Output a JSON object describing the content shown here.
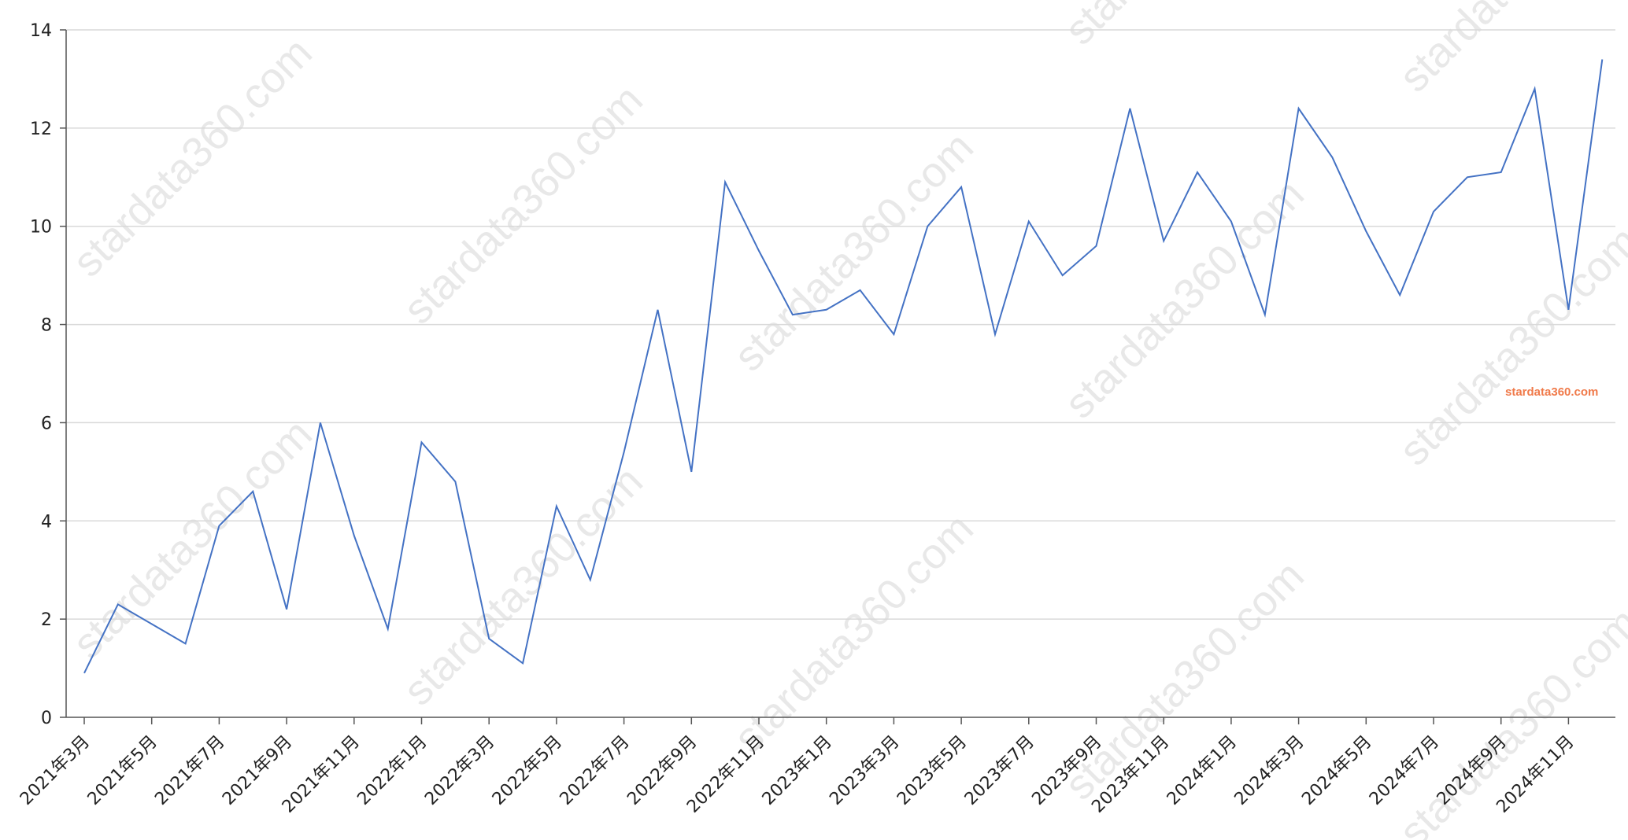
{
  "watermark": {
    "text": "stardata360.com",
    "color": "#e8e8e8"
  },
  "brand": {
    "text": "stardata360.com",
    "color": "#f07a4a"
  },
  "chart_data": {
    "type": "line",
    "title": "",
    "xlabel": "",
    "ylabel": "",
    "ylim": [
      0,
      14
    ],
    "yticks": [
      0,
      2,
      4,
      6,
      8,
      10,
      12,
      14
    ],
    "grid": true,
    "line_color": "#4472c4",
    "x": [
      "2021年3月",
      "2021年4月",
      "2021年5月",
      "2021年6月",
      "2021年7月",
      "2021年8月",
      "2021年9月",
      "2021年10月",
      "2021年11月",
      "2021年12月",
      "2022年1月",
      "2022年2月",
      "2022年3月",
      "2022年4月",
      "2022年5月",
      "2022年6月",
      "2022年7月",
      "2022年8月",
      "2022年9月",
      "2022年10月",
      "2022年11月",
      "2022年12月",
      "2023年1月",
      "2023年2月",
      "2023年3月",
      "2023年4月",
      "2023年5月",
      "2023年6月",
      "2023年7月",
      "2023年8月",
      "2023年9月",
      "2023年10月",
      "2023年11月",
      "2023年12月",
      "2024年1月",
      "2024年2月",
      "2024年3月",
      "2024年4月",
      "2024年5月",
      "2024年6月",
      "2024年7月",
      "2024年8月",
      "2024年9月",
      "2024年10月",
      "2024年11月",
      "2024年12月"
    ],
    "xtick_labels": [
      "2021年3月",
      "2021年5月",
      "2021年7月",
      "2021年9月",
      "2021年11月",
      "2022年1月",
      "2022年3月",
      "2022年5月",
      "2022年7月",
      "2022年9月",
      "2022年11月",
      "2023年1月",
      "2023年3月",
      "2023年5月",
      "2023年7月",
      "2023年9月",
      "2023年11月",
      "2024年1月",
      "2024年3月",
      "2024年5月",
      "2024年7月",
      "2024年9月",
      "2024年11月"
    ],
    "series": [
      {
        "values": [
          0.9,
          2.3,
          1.9,
          1.5,
          3.9,
          4.6,
          2.2,
          6.0,
          3.7,
          1.8,
          5.6,
          4.8,
          1.6,
          1.1,
          4.3,
          2.8,
          5.4,
          8.3,
          5.0,
          10.9,
          9.5,
          8.2,
          8.3,
          8.7,
          7.8,
          10.0,
          10.8,
          7.8,
          10.1,
          9.0,
          9.6,
          12.4,
          9.7,
          11.1,
          10.1,
          8.2,
          12.4,
          11.4,
          9.9,
          8.6,
          10.3,
          11.0,
          11.1,
          12.8,
          8.3,
          13.4
        ]
      }
    ]
  }
}
